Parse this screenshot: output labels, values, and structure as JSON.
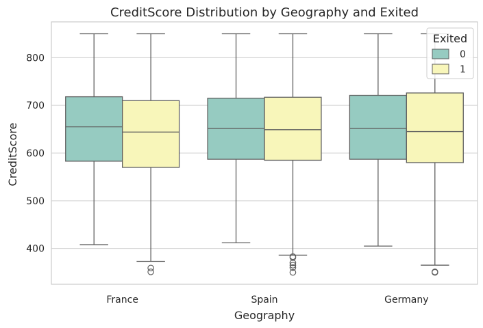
{
  "chart_data": {
    "type": "boxplot",
    "title": "CreditScore Distribution by Geography and Exited",
    "xlabel": "Geography",
    "ylabel": "CreditScore",
    "categories": [
      "France",
      "Spain",
      "Germany"
    ],
    "ylim": [
      325,
      875
    ],
    "yticks": [
      400,
      500,
      600,
      700,
      800
    ],
    "grid": true,
    "legend": {
      "title": "Exited",
      "position": "top-right"
    },
    "series": [
      {
        "name": "0",
        "color": "#96cbc1",
        "boxes": [
          {
            "category": "France",
            "whisker_low": 408,
            "q1": 583,
            "median": 655,
            "q3": 718,
            "whisker_high": 850,
            "outliers": []
          },
          {
            "category": "Spain",
            "whisker_low": 412,
            "q1": 587,
            "median": 652,
            "q3": 715,
            "whisker_high": 850,
            "outliers": []
          },
          {
            "category": "Germany",
            "whisker_low": 405,
            "q1": 587,
            "median": 652,
            "q3": 721,
            "whisker_high": 850,
            "outliers": []
          }
        ]
      },
      {
        "name": "1",
        "color": "#f8f6ba",
        "boxes": [
          {
            "category": "France",
            "whisker_low": 373,
            "q1": 570,
            "median": 644,
            "q3": 710,
            "whisker_high": 850,
            "outliers": [
              359,
              351
            ]
          },
          {
            "category": "Spain",
            "whisker_low": 386,
            "q1": 585,
            "median": 649,
            "q3": 717,
            "whisker_high": 850,
            "outliers": [
              383,
              381,
              370,
              365,
              360,
              350
            ]
          },
          {
            "category": "Germany",
            "whisker_low": 365,
            "q1": 580,
            "median": 645,
            "q3": 726,
            "whisker_high": 850,
            "outliers": [
              351,
              350
            ]
          }
        ]
      }
    ]
  }
}
